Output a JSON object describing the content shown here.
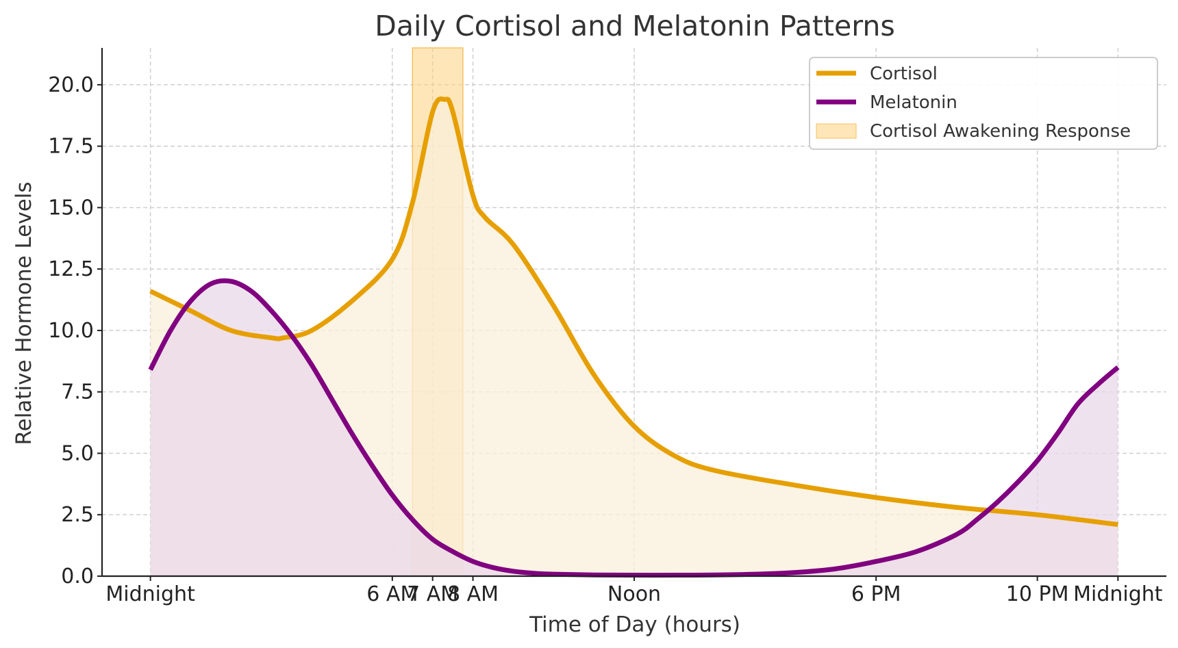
{
  "chart_data": {
    "type": "line",
    "title": "Daily Cortisol and Melatonin Patterns",
    "xlabel": "Time of Day (hours)",
    "ylabel": "Relative Hormone Levels",
    "xlim": [
      -1.2,
      25.2
    ],
    "ylim": [
      0,
      21.5
    ],
    "grid": true,
    "legend_position": "top-right",
    "x_ticks": [
      {
        "value": 0,
        "label": "Midnight"
      },
      {
        "value": 6,
        "label": "6 AM"
      },
      {
        "value": 7,
        "label": "7 AM"
      },
      {
        "value": 8,
        "label": "8 AM"
      },
      {
        "value": 12,
        "label": "Noon"
      },
      {
        "value": 18,
        "label": "6 PM"
      },
      {
        "value": 22,
        "label": "10 PM"
      },
      {
        "value": 24,
        "label": "Midnight"
      }
    ],
    "y_ticks": [
      {
        "value": 0,
        "label": "0.0"
      },
      {
        "value": 2.5,
        "label": "2.5"
      },
      {
        "value": 5,
        "label": "5.0"
      },
      {
        "value": 7.5,
        "label": "7.5"
      },
      {
        "value": 10,
        "label": "10.0"
      },
      {
        "value": 12.5,
        "label": "12.5"
      },
      {
        "value": 15,
        "label": "15.0"
      },
      {
        "value": 17.5,
        "label": "17.5"
      },
      {
        "value": 20,
        "label": "20.0"
      }
    ],
    "series": [
      {
        "name": "Cortisol",
        "color": "#E69F00",
        "fill_color": "#FAEFD9",
        "x": [
          0,
          1,
          2,
          3,
          3.3,
          4,
          5,
          6,
          6.5,
          7,
          7.3,
          7.5,
          8,
          8.3,
          9,
          10,
          11,
          12,
          13,
          14,
          16,
          18,
          20,
          22,
          24
        ],
        "y": [
          11.6,
          10.8,
          10.0,
          9.7,
          9.7,
          10.0,
          11.2,
          12.9,
          15.2,
          18.9,
          19.4,
          18.9,
          15.5,
          14.6,
          13.5,
          11.0,
          8.2,
          6.1,
          4.9,
          4.3,
          3.7,
          3.2,
          2.8,
          2.5,
          2.1
        ]
      },
      {
        "name": "Melatonin",
        "color": "#800080",
        "fill_color": "#EAD8EA",
        "x": [
          0,
          0.5,
          1,
          1.5,
          2,
          2.5,
          3,
          3.5,
          4,
          4.5,
          5,
          5.5,
          6,
          6.5,
          7,
          7.5,
          8,
          8.5,
          9,
          9.5,
          10,
          11,
          12,
          13,
          14,
          15,
          16,
          17,
          18,
          19,
          20,
          20.5,
          21,
          21.5,
          22,
          22.5,
          23,
          23.5,
          24
        ],
        "y": [
          8.4,
          10.0,
          11.2,
          11.9,
          12.0,
          11.6,
          10.8,
          9.8,
          8.6,
          7.2,
          5.8,
          4.5,
          3.3,
          2.3,
          1.5,
          1.0,
          0.6,
          0.35,
          0.2,
          0.12,
          0.08,
          0.05,
          0.04,
          0.04,
          0.05,
          0.08,
          0.15,
          0.3,
          0.6,
          1.0,
          1.7,
          2.3,
          3.0,
          3.8,
          4.7,
          5.8,
          7.0,
          7.8,
          8.5
        ]
      }
    ],
    "highlight_band": {
      "name": "Cortisol Awakening Response",
      "x_range": [
        6.5,
        7.75
      ],
      "color": "#FFD27F"
    },
    "legend": [
      "Cortisol",
      "Melatonin",
      "Cortisol Awakening Response"
    ]
  }
}
